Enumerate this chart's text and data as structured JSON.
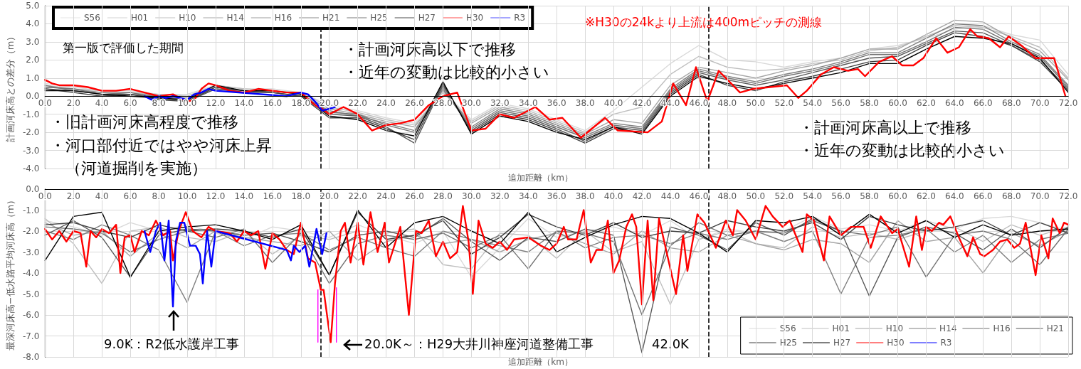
{
  "chart_data": [
    {
      "type": "line",
      "ylabel": "計画河床高との差分（m）",
      "xlabel": "追加距離（km）",
      "xlim": [
        0,
        72
      ],
      "xticks": [
        {
          "value": 0,
          "label": "0.0"
        },
        {
          "value": 2,
          "label": "2.0"
        },
        {
          "value": 4,
          "label": "4.0"
        },
        {
          "value": 6,
          "label": "6.0"
        },
        {
          "value": 8,
          "label": "8.0"
        },
        {
          "value": 10,
          "label": "10.0"
        },
        {
          "value": 12,
          "label": "12.0"
        },
        {
          "value": 14,
          "label": "14.0"
        },
        {
          "value": 16,
          "label": "16.0"
        },
        {
          "value": 18,
          "label": "18.0"
        },
        {
          "value": 20,
          "label": "20.0"
        },
        {
          "value": 22,
          "label": "22.0"
        },
        {
          "value": 24,
          "label": "24.0"
        },
        {
          "value": 26,
          "label": "26.0"
        },
        {
          "value": 28,
          "label": "28.0"
        },
        {
          "value": 30,
          "label": "30.0"
        },
        {
          "value": 32,
          "label": "32.0"
        },
        {
          "value": 34,
          "label": "34.0"
        },
        {
          "value": 36,
          "label": "36.0"
        },
        {
          "value": 38,
          "label": "38.0"
        },
        {
          "value": 40,
          "label": "40.0"
        },
        {
          "value": 42,
          "label": "42.0"
        },
        {
          "value": 44,
          "label": "44.0"
        },
        {
          "value": 46,
          "label": "46.0"
        },
        {
          "value": 48,
          "label": "48.0"
        },
        {
          "value": 50,
          "label": "50.0"
        },
        {
          "value": 52,
          "label": "52.0"
        },
        {
          "value": 54,
          "label": "54.0"
        },
        {
          "value": 56,
          "label": "56.0"
        },
        {
          "value": 58,
          "label": "58.0"
        },
        {
          "value": 60,
          "label": "60.0"
        },
        {
          "value": 62,
          "label": "62.0"
        },
        {
          "value": 64,
          "label": "64.0"
        },
        {
          "value": 66,
          "label": "66.0"
        },
        {
          "value": 68,
          "label": "68.0"
        },
        {
          "value": 70,
          "label": "70.0"
        },
        {
          "value": 72,
          "label": "72.0"
        }
      ],
      "ylim": [
        -4,
        5
      ],
      "yticks": [
        {
          "value": -4,
          "label": "-4.0"
        },
        {
          "value": -3,
          "label": "-3.0"
        },
        {
          "value": -2,
          "label": "-2.0"
        },
        {
          "value": -1,
          "label": "-1.0"
        },
        {
          "value": 0,
          "label": "0.0"
        },
        {
          "value": 1,
          "label": "1.0"
        },
        {
          "value": 2,
          "label": "2.0"
        },
        {
          "value": 3,
          "label": "3.0"
        },
        {
          "value": 4,
          "label": "4.0"
        },
        {
          "value": 5,
          "label": "5.0"
        }
      ],
      "grid": true,
      "legend": "top left",
      "marker": "none",
      "line_style": "solid",
      "x": [
        0,
        2,
        4,
        6,
        8,
        10,
        12,
        14,
        16,
        18,
        20,
        22,
        24,
        26,
        28,
        30,
        32,
        34,
        36,
        38,
        40,
        42,
        44,
        46,
        48,
        50,
        52,
        54,
        56,
        58,
        60,
        62,
        64,
        66,
        68,
        70,
        72
      ],
      "series": [
        {
          "name": "S56",
          "color": "#d9d9d9",
          "values": [
            0.7,
            0.5,
            0.3,
            0.3,
            0.1,
            0.1,
            0.6,
            0.4,
            0.4,
            0.2,
            -0.5,
            -0.8,
            -1.2,
            -1.5,
            0.3,
            -1.3,
            -0.4,
            -0.7,
            -1.3,
            -1.9,
            -0.8,
            0.5,
            1.8,
            2.8,
            2.0,
            1.9,
            1.6,
            1.9,
            2.1,
            2.6,
            2.8,
            3.2,
            3.7,
            3.9,
            3.4,
            3.1,
            1.2
          ]
        },
        {
          "name": "H01",
          "color": "#bfbfbf",
          "values": [
            0.6,
            0.4,
            0.3,
            0.2,
            0.1,
            0.0,
            0.6,
            0.4,
            0.3,
            0.2,
            -0.6,
            -0.9,
            -1.3,
            -1.6,
            0.2,
            -1.4,
            -0.5,
            -0.8,
            -1.4,
            -2.0,
            -1.0,
            -0.6,
            1.2,
            2.2,
            1.6,
            1.4,
            1.5,
            1.8,
            2.0,
            2.5,
            2.7,
            3.3,
            3.9,
            3.8,
            3.3,
            2.7,
            1.0
          ]
        },
        {
          "name": "H10",
          "color": "#a6a6a6",
          "values": [
            0.5,
            0.4,
            0.2,
            0.2,
            0.0,
            -0.1,
            0.5,
            0.3,
            0.3,
            0.1,
            -0.7,
            -1.0,
            -1.4,
            -1.7,
            0.3,
            -1.5,
            -0.6,
            -0.9,
            -1.5,
            -2.1,
            -1.3,
            -1.5,
            0.6,
            1.6,
            1.3,
            1.0,
            1.4,
            1.7,
            2.1,
            2.6,
            2.6,
            3.4,
            4.2,
            4.1,
            3.2,
            2.5,
            0.9
          ]
        },
        {
          "name": "H14",
          "color": "#808080",
          "values": [
            0.6,
            0.3,
            0.2,
            0.1,
            0.0,
            -0.2,
            0.4,
            0.3,
            0.2,
            0.0,
            -0.8,
            -1.1,
            -1.5,
            -1.9,
            0.5,
            -1.7,
            -0.7,
            -1.0,
            -1.6,
            -2.2,
            -1.5,
            -1.7,
            0.4,
            1.5,
            1.1,
            0.8,
            1.2,
            1.5,
            1.9,
            2.4,
            2.4,
            3.2,
            4.0,
            3.9,
            3.0,
            2.3,
            0.6
          ]
        },
        {
          "name": "H16",
          "color": "#737373",
          "values": [
            0.5,
            0.4,
            0.1,
            0.2,
            -0.1,
            -0.2,
            0.5,
            0.2,
            0.3,
            0.1,
            -0.9,
            -1.0,
            -1.6,
            -2.0,
            0.4,
            -1.8,
            -0.8,
            -1.1,
            -1.7,
            -2.3,
            -1.6,
            -1.8,
            0.3,
            1.4,
            1.0,
            0.7,
            1.1,
            1.4,
            1.8,
            2.3,
            2.3,
            3.0,
            3.8,
            3.7,
            2.9,
            2.2,
            0.5
          ]
        },
        {
          "name": "H21",
          "color": "#595959",
          "values": [
            0.4,
            0.3,
            0.1,
            0.1,
            -0.1,
            -0.3,
            0.4,
            0.2,
            0.2,
            0.0,
            -1.0,
            -1.1,
            -1.7,
            -2.6,
            0.6,
            -1.9,
            -0.9,
            -1.2,
            -1.8,
            -2.5,
            -1.7,
            -1.9,
            0.2,
            1.3,
            0.9,
            0.6,
            0.9,
            1.3,
            1.7,
            2.1,
            2.2,
            2.9,
            3.6,
            3.5,
            2.8,
            2.0,
            0.4
          ]
        },
        {
          "name": "H25",
          "color": "#404040",
          "values": [
            0.4,
            0.2,
            0.0,
            0.1,
            -0.2,
            -0.3,
            0.5,
            0.3,
            0.2,
            0.0,
            -1.2,
            -1.2,
            -1.8,
            -2.4,
            0.7,
            -2.0,
            -1.0,
            -1.3,
            -1.9,
            -2.6,
            -1.8,
            -2.0,
            0.1,
            1.2,
            0.6,
            0.3,
            0.8,
            1.1,
            1.5,
            1.9,
            2.0,
            2.8,
            3.5,
            3.3,
            2.8,
            1.9,
            0.3
          ]
        },
        {
          "name": "H27",
          "color": "#000000",
          "values": [
            0.3,
            0.3,
            0.1,
            0.0,
            -0.1,
            -0.2,
            0.6,
            0.3,
            0.3,
            0.1,
            -1.1,
            -1.3,
            -1.9,
            -2.2,
            0.8,
            -2.1,
            -1.1,
            -1.4,
            -2.0,
            -2.4,
            -1.7,
            -2.1,
            0.0,
            1.1,
            0.7,
            0.4,
            0.7,
            1.0,
            1.3,
            1.8,
            1.8,
            2.6,
            3.3,
            3.2,
            2.9,
            2.1,
            0.2
          ]
        },
        {
          "name": "H30",
          "color": "#ff0000",
          "x": [
            0,
            0.5,
            1,
            2,
            3,
            4,
            5,
            6,
            7,
            8,
            9,
            10,
            10.5,
            11,
            11.5,
            12,
            13,
            14,
            15,
            16,
            17,
            18,
            19,
            19.5,
            20,
            21,
            22,
            23,
            24,
            25,
            26,
            27,
            28,
            29,
            30,
            31,
            32,
            33,
            34.5,
            35.5,
            36.4,
            37.7,
            39.4,
            40.3,
            42.4,
            43.4,
            44.2,
            45.1,
            45.8,
            46.6,
            47.4,
            48.9,
            49.8,
            52.2,
            53,
            53.6,
            54.6,
            55.5,
            56.5,
            57.2,
            57.7,
            58.7,
            59.6,
            60.3,
            61.1,
            61.8,
            62.7,
            63.5,
            64.3,
            65.1,
            65.6,
            66.4,
            67.2,
            67.8,
            68.7,
            69.7,
            71,
            71.8
          ],
          "values": [
            0.9,
            0.7,
            0.6,
            0.6,
            0.5,
            0.3,
            0.3,
            0.4,
            0.2,
            0.0,
            0.1,
            -0.3,
            -0.2,
            0.4,
            0.7,
            0.6,
            0.3,
            0.2,
            0.4,
            0.3,
            0.2,
            0.2,
            -0.5,
            -0.7,
            -1.0,
            -0.6,
            -1.0,
            -1.9,
            -1.6,
            -1.5,
            -1.3,
            -0.5,
            0.0,
            0.2,
            -1.9,
            -1.8,
            -1.0,
            -1.2,
            -0.6,
            -1.3,
            -1.2,
            -2.3,
            -1.2,
            -1.9,
            -2.0,
            -1.4,
            0.7,
            -0.5,
            1.6,
            -0.3,
            1.4,
            0.2,
            0.4,
            0.6,
            -0.1,
            0.3,
            1.2,
            1.6,
            1.4,
            1.5,
            1.1,
            1.9,
            2.2,
            1.7,
            1.7,
            2.1,
            3.2,
            2.4,
            2.7,
            3.7,
            3.3,
            3.2,
            2.7,
            3.3,
            2.8,
            2.1,
            2.1,
            0.0
          ]
        },
        {
          "name": "R3",
          "color": "#0000ff",
          "x": [
            7,
            7.5,
            8,
            8.5,
            9,
            9.5,
            10,
            10.5,
            11,
            11.5,
            12,
            17,
            17.5,
            18,
            18.5,
            19,
            19.5,
            20,
            20.4
          ],
          "values": [
            0.0,
            -0.2,
            0.0,
            -0.1,
            0.0,
            -0.1,
            -0.2,
            0.1,
            0.2,
            0.4,
            0.3,
            0.0,
            0.1,
            0.2,
            0.1,
            -0.3,
            -0.8,
            -0.7,
            -0.6
          ]
        }
      ],
      "ref_lines": [
        {
          "axis": "x",
          "value": 19.4,
          "color": "#000000",
          "line_style": "dashed"
        },
        {
          "axis": "x",
          "value": 46.7,
          "color": "#000000",
          "line_style": "dashed"
        }
      ],
      "annotations": [
        "※H30の24kより上流は400mピッチの測線",
        "第一版で評価した期間",
        "・計画河床高以下で推移",
        "・近年の変動は比較的小さい",
        "・旧計画河床高程度で推移",
        "・河口部付近ではやや河床上昇",
        "（河道掘削を実施）",
        "・計画河床高以上で推移",
        "・近年の変動は比較的小さい"
      ]
    },
    {
      "type": "line",
      "ylabel": "最深河床高−低水路平均河床高（m）",
      "xlabel": "追加距離（km）",
      "xlim": [
        0,
        72
      ],
      "xticks": [
        {
          "value": 0,
          "label": "0.0"
        },
        {
          "value": 2,
          "label": "2.0"
        },
        {
          "value": 4,
          "label": "4.0"
        },
        {
          "value": 6,
          "label": "6.0"
        },
        {
          "value": 8,
          "label": "8.0"
        },
        {
          "value": 10,
          "label": "10.0"
        },
        {
          "value": 12,
          "label": "12.0"
        },
        {
          "value": 14,
          "label": "14.0"
        },
        {
          "value": 16,
          "label": "16.0"
        },
        {
          "value": 18,
          "label": "18.0"
        },
        {
          "value": 20,
          "label": "20.0"
        },
        {
          "value": 22,
          "label": "22.0"
        },
        {
          "value": 24,
          "label": "24.0"
        },
        {
          "value": 26,
          "label": "26.0"
        },
        {
          "value": 28,
          "label": "28.0"
        },
        {
          "value": 30,
          "label": "30.0"
        },
        {
          "value": 32,
          "label": "32.0"
        },
        {
          "value": 34,
          "label": "34.0"
        },
        {
          "value": 36,
          "label": "36.0"
        },
        {
          "value": 38,
          "label": "38.0"
        },
        {
          "value": 40,
          "label": "40.0"
        },
        {
          "value": 42,
          "label": "42.0"
        },
        {
          "value": 44,
          "label": "44.0"
        },
        {
          "value": 46,
          "label": "46.0"
        },
        {
          "value": 48,
          "label": "48.0"
        },
        {
          "value": 50,
          "label": "50.0"
        },
        {
          "value": 52,
          "label": "52.0"
        },
        {
          "value": 54,
          "label": "54.0"
        },
        {
          "value": 56,
          "label": "56.0"
        },
        {
          "value": 58,
          "label": "58.0"
        },
        {
          "value": 60,
          "label": "60.0"
        },
        {
          "value": 62,
          "label": "62.0"
        },
        {
          "value": 64,
          "label": "64.0"
        },
        {
          "value": 66,
          "label": "66.0"
        },
        {
          "value": 68,
          "label": "68.0"
        },
        {
          "value": 70,
          "label": "70.0"
        },
        {
          "value": 72,
          "label": "72.0"
        }
      ],
      "ylim": [
        -8,
        0
      ],
      "yticks": [
        {
          "value": -8,
          "label": "-8.0"
        },
        {
          "value": -7,
          "label": "-7.0"
        },
        {
          "value": -6,
          "label": "-6.0"
        },
        {
          "value": -5,
          "label": "-5.0"
        },
        {
          "value": -4,
          "label": "-4.0"
        },
        {
          "value": -3,
          "label": "-3.0"
        },
        {
          "value": -2,
          "label": "-2.0"
        },
        {
          "value": -1,
          "label": "-1.0"
        },
        {
          "value": 0,
          "label": "0.0"
        }
      ],
      "grid": true,
      "legend": "bottom right",
      "marker": "none",
      "line_style": "solid",
      "x": [
        0,
        2,
        4,
        6,
        8,
        10,
        12,
        14,
        16,
        18,
        20,
        22,
        24,
        26,
        28,
        30,
        32,
        34,
        36,
        38,
        40,
        42,
        44,
        46,
        48,
        50,
        52,
        54,
        56,
        58,
        60,
        62,
        64,
        66,
        68,
        70,
        72
      ],
      "series": [
        {
          "name": "S56",
          "color": "#d9d9d9",
          "values": [
            -1.5,
            -1.8,
            -2.2,
            -1.6,
            -2.0,
            -1.7,
            -2.1,
            -2.4,
            -1.8,
            -2.0,
            -2.3,
            -1.7,
            -2.2,
            -2.6,
            -2.0,
            -4.2,
            -2.8,
            -1.4,
            -2.3,
            -2.0,
            -1.8,
            -2.2,
            -1.5,
            -2.4,
            -1.9,
            -2.1,
            -2.0,
            -1.3,
            -1.9,
            -1.7,
            -2.0,
            -1.5,
            -1.9,
            -1.4,
            -1.3,
            -1.6,
            -2.0
          ]
        },
        {
          "name": "H01",
          "color": "#bfbfbf",
          "values": [
            -1.4,
            -2.6,
            -4.5,
            -2.0,
            -1.8,
            -2.3,
            -2.5,
            -2.0,
            -3.1,
            -2.2,
            -2.4,
            -2.0,
            -2.1,
            -1.9,
            -3.6,
            -3.8,
            -2.1,
            -2.2,
            -3.3,
            -2.0,
            -3.0,
            -2.5,
            -5.5,
            -2.4,
            -2.0,
            -2.6,
            -2.8,
            -1.8,
            -2.3,
            -2.1,
            -2.4,
            -2.0,
            -1.8,
            -2.5,
            -1.7,
            -2.2,
            -1.8
          ]
        },
        {
          "name": "H10",
          "color": "#a6a6a6",
          "values": [
            -1.6,
            -2.2,
            -2.0,
            -3.2,
            -2.1,
            -2.8,
            -2.0,
            -2.3,
            -2.5,
            -2.7,
            -2.0,
            -3.4,
            -2.5,
            -2.2,
            -2.6,
            -2.4,
            -3.0,
            -2.4,
            -2.1,
            -2.6,
            -3.1,
            -2.0,
            -2.8,
            -3.0,
            -2.2,
            -2.6,
            -2.9,
            -2.4,
            -2.6,
            -3.5,
            -1.5,
            -2.5,
            -2.3,
            -4.0,
            -2.1,
            -2.7,
            -2.0
          ]
        },
        {
          "name": "H14",
          "color": "#808080",
          "values": [
            -2.0,
            -2.4,
            -1.7,
            -2.2,
            -2.9,
            -5.4,
            -2.0,
            -2.7,
            -2.2,
            -2.1,
            -2.9,
            -2.3,
            -2.8,
            -3.2,
            -2.0,
            -2.4,
            -2.7,
            -3.0,
            -2.0,
            -2.8,
            -2.3,
            -2.2,
            -2.6,
            -2.1,
            -2.4,
            -2.0,
            -2.5,
            -2.0,
            -5.0,
            -2.3,
            -2.2,
            -1.9,
            -3.0,
            -2.2,
            -3.5,
            -2.4,
            -2.1
          ]
        },
        {
          "name": "H16",
          "color": "#737373",
          "values": [
            -1.8,
            -1.9,
            -2.1,
            -3.0,
            -2.4,
            -2.0,
            -2.3,
            -1.9,
            -3.5,
            -2.1,
            -4.5,
            -2.6,
            -2.2,
            -2.4,
            -2.1,
            -2.8,
            -2.2,
            -3.8,
            -2.0,
            -2.1,
            -2.5,
            -6.0,
            -2.7,
            -1.6,
            -2.2,
            -2.0,
            -2.1,
            -1.5,
            -2.0,
            -2.2,
            -1.8,
            -4.2,
            -2.2,
            -2.0,
            -2.4,
            -3.6,
            -1.9
          ]
        },
        {
          "name": "H21",
          "color": "#595959",
          "values": [
            -2.2,
            -1.5,
            -2.3,
            -4.2,
            -2.2,
            -1.9,
            -2.0,
            -2.2,
            -2.1,
            -2.5,
            -3.0,
            -2.2,
            -2.0,
            -2.3,
            -1.4,
            -2.5,
            -3.4,
            -2.3,
            -2.5,
            -1.9,
            -2.2,
            -7.8,
            -1.8,
            -2.2,
            -2.9,
            -1.6,
            -2.2,
            -1.4,
            -2.0,
            -5.1,
            -2.3,
            -1.8,
            -2.1,
            -2.9,
            -1.9,
            -2.8,
            -1.8
          ]
        },
        {
          "name": "H25",
          "color": "#404040",
          "values": [
            -1.7,
            -1.6,
            -2.0,
            -2.3,
            -1.7,
            -2.0,
            -1.9,
            -2.0,
            -2.3,
            -1.9,
            -4.1,
            -1.1,
            -2.4,
            -2.2,
            -1.5,
            -3.1,
            -2.3,
            -1.2,
            -1.8,
            -2.2,
            -1.6,
            -2.3,
            -2.0,
            -2.1,
            -1.5,
            -1.8,
            -2.0,
            -1.6,
            -2.4,
            -1.3,
            -1.7,
            -2.0,
            -1.8,
            -1.5,
            -2.2,
            -1.6,
            -2.1
          ]
        },
        {
          "name": "H27",
          "color": "#000000",
          "values": [
            -3.4,
            -1.3,
            -1.1,
            -4.2,
            -2.0,
            -1.8,
            -1.7,
            -2.0,
            -2.4,
            -1.7,
            -4.1,
            -1.0,
            -2.8,
            -1.6,
            -1.3,
            -2.0,
            -2.6,
            -1.1,
            -3.0,
            -2.3,
            -1.7,
            -1.3,
            -1.4,
            -2.1,
            -3.0,
            -1.5,
            -1.6,
            -1.3,
            -2.2,
            -1.2,
            -2.1,
            -1.5,
            -2.3,
            -1.7,
            -2.2,
            -2.0,
            -1.9
          ]
        },
        {
          "name": "H30",
          "color": "#ff0000",
          "x": [
            0,
            0.5,
            1,
            1.5,
            2,
            2.5,
            2.9,
            3.2,
            3.6,
            4,
            4.5,
            5,
            5.3,
            5.6,
            6,
            6.3,
            6.8,
            7.3,
            7.8,
            8.3,
            8.8,
            9,
            9.4,
            9.9,
            10.4,
            11,
            11.5,
            12,
            13,
            13.5,
            14,
            14.5,
            15,
            15.5,
            16,
            16.5,
            17,
            17.5,
            18,
            18.5,
            19,
            19.4,
            19.6,
            20.1,
            20.4,
            20.8,
            21.1,
            21.5,
            22,
            22.4,
            22.9,
            23.4,
            23.9,
            24.2,
            25,
            25.6,
            26.1,
            26.5,
            27,
            27.5,
            28,
            28.5,
            29,
            29.4,
            29.8,
            30.1,
            30.5,
            31,
            31.5,
            32,
            32.5,
            33,
            34,
            34.9,
            35.5,
            36,
            36.5,
            36.8,
            37.4,
            37.9,
            38.4,
            38.8,
            39.2,
            39.6,
            40,
            40.4,
            40.9,
            41.3,
            41.6,
            42,
            42.4,
            42.8,
            43.2,
            44.4,
            44.9,
            45.2,
            45.9,
            46.4,
            47.2,
            47.9,
            48.4,
            48.7,
            49.3,
            50,
            50.7,
            51.2,
            51.9,
            52.4,
            53.3,
            53.6,
            54.1,
            54.8,
            55.2,
            56,
            56.7,
            57.1,
            57.6,
            58.1,
            58.8,
            59.6,
            60,
            60.8,
            61.3,
            61.7,
            62,
            62.4,
            62.9,
            63.2,
            63.7,
            64.3,
            64.9,
            65.3,
            65.8,
            66.1,
            66.7,
            67.2,
            67.7,
            68.2,
            68.6,
            69,
            69.7,
            70.1,
            70.6,
            70.9,
            71.4,
            71.7,
            72
          ],
          "values": [
            -1.9,
            -2.4,
            -2.0,
            -2.5,
            -2.0,
            -2.1,
            -3.7,
            -2.0,
            -2.3,
            -1.9,
            -2.1,
            -1.7,
            -4.0,
            -2.3,
            -2.2,
            -3.0,
            -2.0,
            -2.2,
            -1.5,
            -2.2,
            -2.0,
            -3.4,
            -2.0,
            -1.1,
            -2.0,
            -2.3,
            -1.8,
            -2.0,
            -2.1,
            -2.5,
            -2.0,
            -2.2,
            -2.0,
            -3.8,
            -2.1,
            -2.4,
            -2.9,
            -3.1,
            -1.6,
            -3.3,
            -3.5,
            -4.8,
            -4.8,
            -7.3,
            -4.5,
            -2.0,
            -1.6,
            -3.5,
            -1.6,
            -3.6,
            -1.1,
            -3.0,
            -1.6,
            -3.5,
            -1.8,
            -6.0,
            -2.0,
            -2.1,
            -1.5,
            -3.2,
            -2.5,
            -3.3,
            -3.0,
            -0.8,
            -2.5,
            -5.0,
            -1.5,
            -2.6,
            -2.8,
            -2.5,
            -2.9,
            -2.4,
            -2.3,
            -2.7,
            -2.9,
            -2.6,
            -1.8,
            -2.4,
            -2.4,
            -1.0,
            -3.5,
            -2.9,
            -2.9,
            -1.5,
            -4.0,
            -3.4,
            -1.8,
            -1.2,
            -1.8,
            -5.5,
            -1.5,
            -5.3,
            -1.4,
            -5.0,
            -2.2,
            -3.9,
            -1.2,
            -1.6,
            -2.8,
            -1.5,
            -2.2,
            -1.0,
            -1.5,
            -2.4,
            -0.8,
            -1.3,
            -1.8,
            -1.5,
            -3.0,
            -1.2,
            -1.5,
            -3.4,
            -1.3,
            -2.2,
            -1.8,
            -1.8,
            -1.8,
            -2.8,
            -1.3,
            -2.1,
            -1.9,
            -3.7,
            -1.3,
            -2.9,
            -1.8,
            -2.0,
            -1.6,
            -1.7,
            -1.3,
            -2.3,
            -3.2,
            -2.3,
            -3.1,
            -3.2,
            -2.9,
            -2.5,
            -2.4,
            -2.8,
            -2.6,
            -1.6,
            -4.1,
            -2.2,
            -3.3,
            -1.4,
            -2.1,
            -1.6,
            -1.7
          ]
        },
        {
          "name": "R3",
          "color": "#0000ff",
          "x": [
            7,
            7.4,
            7.8,
            8.1,
            8.4,
            8.7,
            9,
            9.2,
            9.5,
            9.8,
            10.2,
            10.6,
            10.9,
            11.1,
            11.4,
            11.7,
            12,
            17,
            17.3,
            17.5,
            17.9,
            18.3,
            18.6,
            19.1,
            19.5,
            19.8
          ],
          "values": [
            -2.0,
            -3.0,
            -2.0,
            -1.6,
            -3.4,
            -1.5,
            -5.6,
            -2.5,
            -1.6,
            -1.6,
            -2.7,
            -2.7,
            -3.1,
            -4.5,
            -2.0,
            -3.7,
            -2.0,
            -2.9,
            -3.4,
            -2.7,
            -3.0,
            -2.7,
            -3.7,
            -1.9,
            -3.1,
            -2.1
          ]
        },
        {
          "color": "#ff00ff",
          "x": [
            19.2,
            19.2
          ],
          "values": [
            -4.8,
            -7.3
          ]
        },
        {
          "color": "#ff00ff",
          "x": [
            20.5,
            20.5
          ],
          "values": [
            -4.7,
            -7.3
          ]
        }
      ],
      "ref_lines": [
        {
          "axis": "x",
          "value": 19.4,
          "color": "#000000",
          "line_style": "dashed"
        },
        {
          "axis": "x",
          "value": 46.7,
          "color": "#000000",
          "line_style": "dashed"
        }
      ],
      "annotations": [
        "9.0K：R2低水護岸工事",
        "20.0K～：H29大井川神座河道整備工事",
        "42.0K"
      ]
    }
  ]
}
